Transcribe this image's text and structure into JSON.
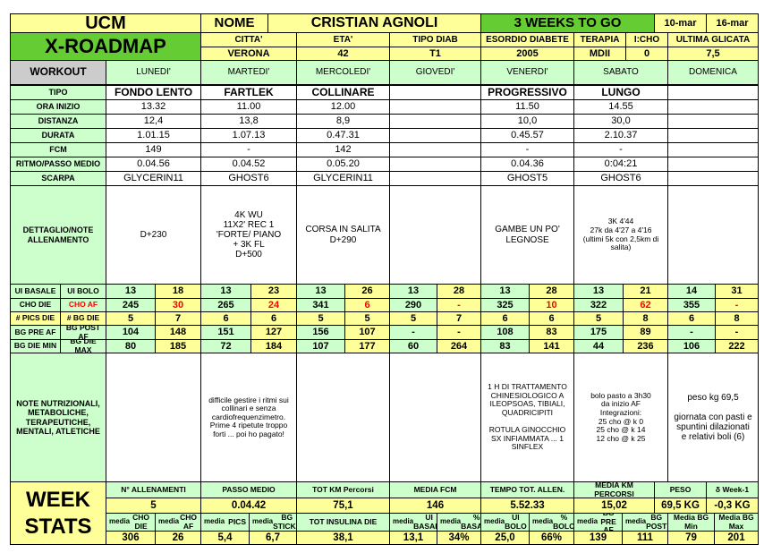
{
  "colors": {
    "lime": "#ffff99",
    "green": "#66cc33",
    "lightgreen": "#ccffcc",
    "gray": "#cccccc",
    "white": "#ffffff",
    "red": "#ff0000"
  },
  "header": {
    "ucm": "UCM",
    "roadmap": "X-ROADMAP",
    "nome_label": "NOME",
    "name": "CRISTIAN AGNOLI",
    "weeks": "3 WEEKS TO GO",
    "date_from": "10-mar",
    "date_to": "16-mar",
    "citta_label": "CITTA'",
    "citta": "VERONA",
    "eta_label": "ETA'",
    "eta": "42",
    "tipo_diab_label": "TIPO DIAB",
    "tipo_diab": "T1",
    "esordio_label": "ESORDIO DIABETE",
    "esordio": "2005",
    "terapia_label": "TERAPIA",
    "terapia": "MDII",
    "icho_label": "I:CHO",
    "icho": "0",
    "glicata_label": "ULTIMA GLICATA",
    "glicata": "7,5"
  },
  "row_labels": {
    "workout": "WORKOUT",
    "tipo": "TIPO",
    "ora": "ORA INIZIO",
    "distanza": "DISTANZA",
    "durata": "DURATA",
    "fcm": "FCM",
    "ritmo": "RITMO/PASSO MEDIO",
    "scarpa": "SCARPA",
    "dettaglio": "DETTAGLIO/NOTE\nALLENAMENTO",
    "ui_basale": "UI BASALE",
    "ui_bolo": "UI BOLO",
    "cho_die": "CHO DIE",
    "cho_af": "CHO AF",
    "pics": "# PICS DIE",
    "bg_die": "# BG DIE",
    "bg_pre": "BG PRE AF",
    "bg_post": "BG POST AF",
    "bg_min": "BG DIE MIN",
    "bg_max": "BG DIE MAX",
    "note": "NOTE NUTRIZIONALI,\nMETABOLICHE,\nTERAPEUTICHE,\nMENTALI, ATLETICHE"
  },
  "days": [
    {
      "name": "LUNEDI'",
      "tipo": "FONDO LENTO",
      "ora": "13.32",
      "distanza": "12,4",
      "durata": "1.01.15",
      "fcm": "149",
      "ritmo": "0.04.56",
      "scarpa": "GLYCERIN11",
      "dettaglio": "D+230",
      "ui_basale": "13",
      "ui_bolo": "18",
      "cho_die": "245",
      "cho_af": "30",
      "pics": "5",
      "bg": "7",
      "bg_pre": "104",
      "bg_post": "148",
      "bg_min": "80",
      "bg_max": "185",
      "note": ""
    },
    {
      "name": "MARTEDI'",
      "tipo": "FARTLEK",
      "ora": "11.00",
      "distanza": "13,8",
      "durata": "1.07.13",
      "fcm": "-",
      "ritmo": "0.04.52",
      "scarpa": "GHOST6",
      "dettaglio": "4K WU\n11X2' REC 1\n'FORTE/ PIANO\n+ 3K FL\nD+500",
      "ui_basale": "13",
      "ui_bolo": "23",
      "cho_die": "265",
      "cho_af": "24",
      "pics": "6",
      "bg": "6",
      "bg_pre": "151",
      "bg_post": "127",
      "bg_min": "72",
      "bg_max": "184",
      "note": "difficile gestire i ritmi sui\ncollinari e senza\ncardiofrequenzimetro.\nPrime 4 ripetute troppo\nforti ... poi ho pagato!"
    },
    {
      "name": "MERCOLEDI'",
      "tipo": "COLLINARE",
      "ora": "12.00",
      "distanza": "8,9",
      "durata": "0.47.31",
      "fcm": "142",
      "ritmo": "0.05.20",
      "scarpa": "GLYCERIN11",
      "dettaglio": "CORSA IN SALITA\nD+290",
      "ui_basale": "13",
      "ui_bolo": "26",
      "cho_die": "341",
      "cho_af": "6",
      "pics": "5",
      "bg": "5",
      "bg_pre": "156",
      "bg_post": "107",
      "bg_min": "107",
      "bg_max": "177",
      "note": ""
    },
    {
      "name": "GIOVEDI'",
      "tipo": "",
      "ora": "",
      "distanza": "",
      "durata": "",
      "fcm": "",
      "ritmo": "",
      "scarpa": "",
      "dettaglio": "",
      "ui_basale": "13",
      "ui_bolo": "28",
      "cho_die": "290",
      "cho_af": "-",
      "pics": "5",
      "bg": "7",
      "bg_pre": "-",
      "bg_post": "-",
      "bg_min": "60",
      "bg_max": "264",
      "note": ""
    },
    {
      "name": "VENERDI'",
      "tipo": "PROGRESSIVO",
      "ora": "11.50",
      "distanza": "10,0",
      "durata": "0.45.57",
      "fcm": "-",
      "ritmo": "0.04.36",
      "scarpa": "GHOST5",
      "dettaglio": "GAMBE UN PO'\nLEGNOSE",
      "ui_basale": "13",
      "ui_bolo": "28",
      "cho_die": "325",
      "cho_af": "10",
      "pics": "6",
      "bg": "6",
      "bg_pre": "108",
      "bg_post": "83",
      "bg_min": "83",
      "bg_max": "141",
      "note": "1 H DI TRATTAMENTO\nCHINESIOLOGICO A\nILEOPSOAS, TIBIALI,\nQUADRICIPITI\n\nROTULA GINOCCHIO\nSX INFIAMMATA ... 1\nSINFLEX"
    },
    {
      "name": "SABATO",
      "tipo": "LUNGO",
      "ora": "14.55",
      "distanza": "30,0",
      "durata": "2.10.37",
      "fcm": "-",
      "ritmo": "0:04:21",
      "scarpa": "GHOST6",
      "dettaglio": "3K  4'44\n27k da 4'27 a 4'16\n(ultimi 5k con 2,5km di\nsalita)",
      "ui_basale": "13",
      "ui_bolo": "21",
      "cho_die": "322",
      "cho_af": "62",
      "pics": "5",
      "bg": "8",
      "bg_pre": "175",
      "bg_post": "89",
      "bg_min": "44",
      "bg_max": "236",
      "note": "bolo pasto a 3h30\nda inizio AF\nIntegrazioni:\n25 cho @ k 0\n25 cho @ k 14\n12 cho @ k 25"
    },
    {
      "name": "DOMENICA",
      "tipo": "",
      "ora": "",
      "distanza": "",
      "durata": "",
      "fcm": "",
      "ritmo": "",
      "scarpa": "",
      "dettaglio": "",
      "ui_basale": "14",
      "ui_bolo": "31",
      "cho_die": "355",
      "cho_af": "-",
      "pics": "6",
      "bg": "8",
      "bg_pre": "-",
      "bg_post": "-",
      "bg_min": "106",
      "bg_max": "222",
      "note": "peso kg 69,5\n\ngiornata con pasti e\nspuntini dilazionati\ne relativi boli (6)"
    }
  ],
  "week": {
    "title": "WEEK\nSTATS",
    "h1": [
      "N° ALLENAMENTI",
      "PASSO MEDIO",
      "TOT KM Percorsi",
      "MEDIA FCM",
      "TEMPO TOT. ALLEN.",
      "MEDIA KM\nPERCORSI",
      "PESO",
      "δ Week-1"
    ],
    "v1": [
      "5",
      "0.04.42",
      "75,1",
      "146",
      "5.52.33",
      "15,02",
      "69,5 KG",
      "-0,3 KG"
    ],
    "h2": [
      [
        "media",
        "CHO DIE"
      ],
      [
        "media",
        "CHO AF"
      ],
      [
        "media",
        "PICS"
      ],
      [
        "media",
        "BG STICKS"
      ],
      [
        "",
        "TOT INSULINA DIE"
      ],
      [
        "media",
        "UI BASALE"
      ],
      [
        "media",
        "% BASALE"
      ],
      [
        "media",
        "UI BOLO"
      ],
      [
        "media",
        "% BOLO"
      ],
      [
        "media",
        "BG PRE AF"
      ],
      [
        "media",
        "BG POST"
      ],
      [
        "",
        "Media BG Min"
      ],
      [
        "",
        "Media BG Max"
      ]
    ],
    "v2": [
      "306",
      "26",
      "5,4",
      "6,7",
      "38,1",
      "13,1",
      "34%",
      "25,0",
      "66%",
      "139",
      "111",
      "79",
      "201"
    ]
  }
}
